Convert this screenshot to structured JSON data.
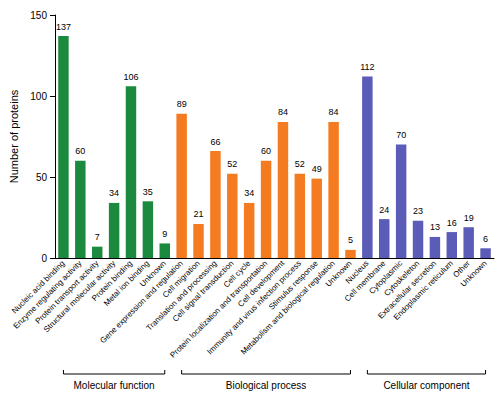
{
  "chart_data": {
    "type": "bar",
    "y_label": "Number of proteins",
    "categories": [
      "Nucleic acid binding",
      "Enzyme regulating activity",
      "Protein transport activity",
      "Structural molecular activity",
      "Protein binding",
      "Metal ion binding",
      "Unknown",
      "Gene expression and regulation",
      "Cell migration",
      "Translation and processing",
      "Cell signal transduction",
      "Cell cycle",
      "Protein localization and transportation",
      "Cell development",
      "Immunity and virus infection process",
      "Stimulus response",
      "Metabolism and biological regulation",
      "Unknown",
      "Nucleus",
      "Cell membrane",
      "Cytoplasmic",
      "Cytoskeleton",
      "Extracellular secretion",
      "Endoplasmic reticulum",
      "Other",
      "Unknown"
    ],
    "series": [
      {
        "name": "Molecular function",
        "color": "#1b8a3f",
        "values": [
          137,
          60,
          7,
          34,
          106,
          35,
          9,
          null,
          null,
          null,
          null,
          null,
          null,
          null,
          null,
          null,
          null,
          null,
          null,
          null,
          null,
          null,
          null,
          null,
          null,
          null
        ]
      },
      {
        "name": "Biological process",
        "color": "#f47b20",
        "values": [
          null,
          null,
          null,
          null,
          null,
          null,
          null,
          89,
          21,
          66,
          52,
          34,
          60,
          84,
          52,
          49,
          84,
          5,
          null,
          null,
          null,
          null,
          null,
          null,
          null,
          null
        ]
      },
      {
        "name": "Cellular component",
        "color": "#5b5bb8",
        "values": [
          null,
          null,
          null,
          null,
          null,
          null,
          null,
          null,
          null,
          null,
          null,
          null,
          null,
          null,
          null,
          null,
          null,
          null,
          112,
          24,
          70,
          23,
          13,
          16,
          19,
          6
        ]
      }
    ],
    "ylim": [
      0,
      150
    ],
    "yticks": [
      0,
      50,
      100,
      150
    ],
    "stacked": true,
    "data_labels": true,
    "grid": false
  }
}
